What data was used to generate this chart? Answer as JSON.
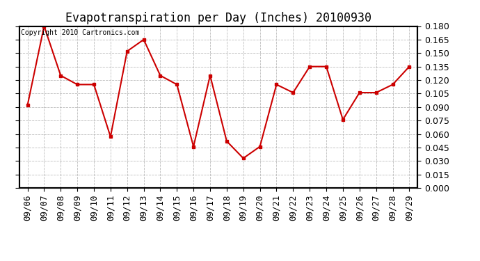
{
  "title": "Evapotranspiration per Day (Inches) 20100930",
  "copyright": "Copyright 2010 Cartronics.com",
  "dates": [
    "09/06",
    "09/07",
    "09/08",
    "09/09",
    "09/10",
    "09/11",
    "09/12",
    "09/13",
    "09/14",
    "09/15",
    "09/16",
    "09/17",
    "09/18",
    "09/19",
    "09/20",
    "09/21",
    "09/22",
    "09/23",
    "09/24",
    "09/25",
    "09/26",
    "09/27",
    "09/28",
    "09/29"
  ],
  "values": [
    0.092,
    0.18,
    0.125,
    0.115,
    0.115,
    0.057,
    0.152,
    0.165,
    0.125,
    0.115,
    0.046,
    0.125,
    0.052,
    0.033,
    0.046,
    0.115,
    0.106,
    0.135,
    0.135,
    0.076,
    0.106,
    0.106,
    0.115,
    0.135
  ],
  "line_color": "#cc0000",
  "marker": "s",
  "marker_size": 3,
  "background_color": "#ffffff",
  "grid_color": "#aaaaaa",
  "ylim": [
    0.0,
    0.18
  ],
  "yticks": [
    0.0,
    0.015,
    0.03,
    0.045,
    0.06,
    0.075,
    0.09,
    0.105,
    0.12,
    0.135,
    0.15,
    0.165,
    0.18
  ],
  "title_fontsize": 12,
  "copyright_fontsize": 7,
  "tick_fontsize": 9,
  "fig_width": 6.9,
  "fig_height": 3.75
}
